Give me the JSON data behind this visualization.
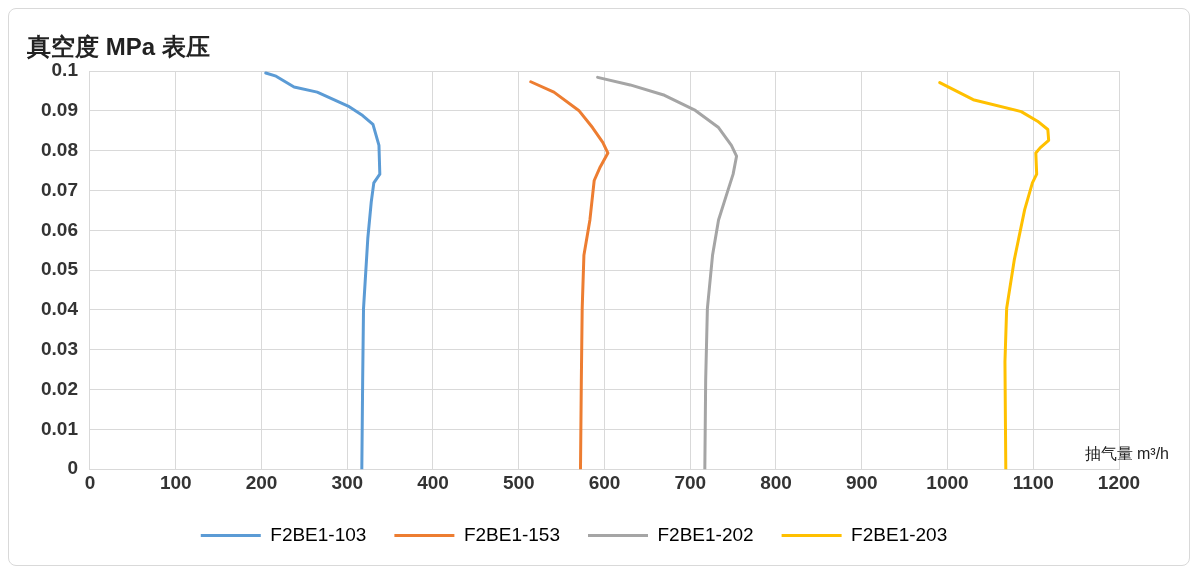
{
  "chart_data": {
    "type": "line",
    "ylabel": "真空度 MPa 表压",
    "xlabel": "抽气量 m³/h",
    "xlim": [
      0,
      1200
    ],
    "xticks": [
      0,
      100,
      200,
      300,
      400,
      500,
      600,
      700,
      800,
      900,
      1000,
      1100,
      1200
    ],
    "ylim": [
      0,
      0.1
    ],
    "yticks": [
      0,
      0.01,
      0.02,
      0.03,
      0.04,
      0.05,
      0.06,
      0.07,
      0.08,
      0.09,
      0.1
    ],
    "grid": true,
    "legend": "bottom",
    "marker": "none",
    "line_style": "solid",
    "series": [
      {
        "name": "F2BE1-103",
        "color": "#5b9bd5",
        "x": [
          205,
          217,
          238,
          265,
          301,
          318,
          330,
          337,
          338,
          331,
          328,
          324,
          319,
          318,
          317
        ],
        "values": [
          0.0995,
          0.0987,
          0.096,
          0.0947,
          0.0912,
          0.0888,
          0.0866,
          0.0813,
          0.0741,
          0.0719,
          0.0671,
          0.058,
          0.0404,
          0.0225,
          0
        ]
      },
      {
        "name": "F2BE1-153",
        "color": "#ed7d31",
        "x": [
          514,
          541,
          570,
          586,
          598,
          604,
          595,
          588,
          583,
          576,
          574,
          573,
          572
        ],
        "values": [
          0.0973,
          0.0947,
          0.0901,
          0.0858,
          0.0821,
          0.0794,
          0.0759,
          0.0725,
          0.0626,
          0.0537,
          0.0404,
          0.0225,
          0
        ]
      },
      {
        "name": "F2BE1-202",
        "color": "#a5a5a5",
        "x": [
          592,
          630,
          670,
          706,
          733,
          748,
          754,
          750,
          742,
          733,
          726,
          720,
          718,
          717
        ],
        "values": [
          0.0984,
          0.0965,
          0.0939,
          0.0901,
          0.0858,
          0.0813,
          0.0786,
          0.0741,
          0.0687,
          0.0626,
          0.0537,
          0.0404,
          0.0225,
          0
        ]
      },
      {
        "name": "F2BE1-203",
        "color": "#ffc000",
        "x": [
          991,
          1030,
          1086,
          1105,
          1117,
          1118,
          1108,
          1103,
          1104,
          1099,
          1090,
          1078,
          1069,
          1067,
          1068
        ],
        "values": [
          0.0971,
          0.0928,
          0.0898,
          0.0874,
          0.0853,
          0.0826,
          0.0807,
          0.0794,
          0.0741,
          0.0719,
          0.0652,
          0.0527,
          0.0404,
          0.027,
          0
        ]
      }
    ]
  }
}
